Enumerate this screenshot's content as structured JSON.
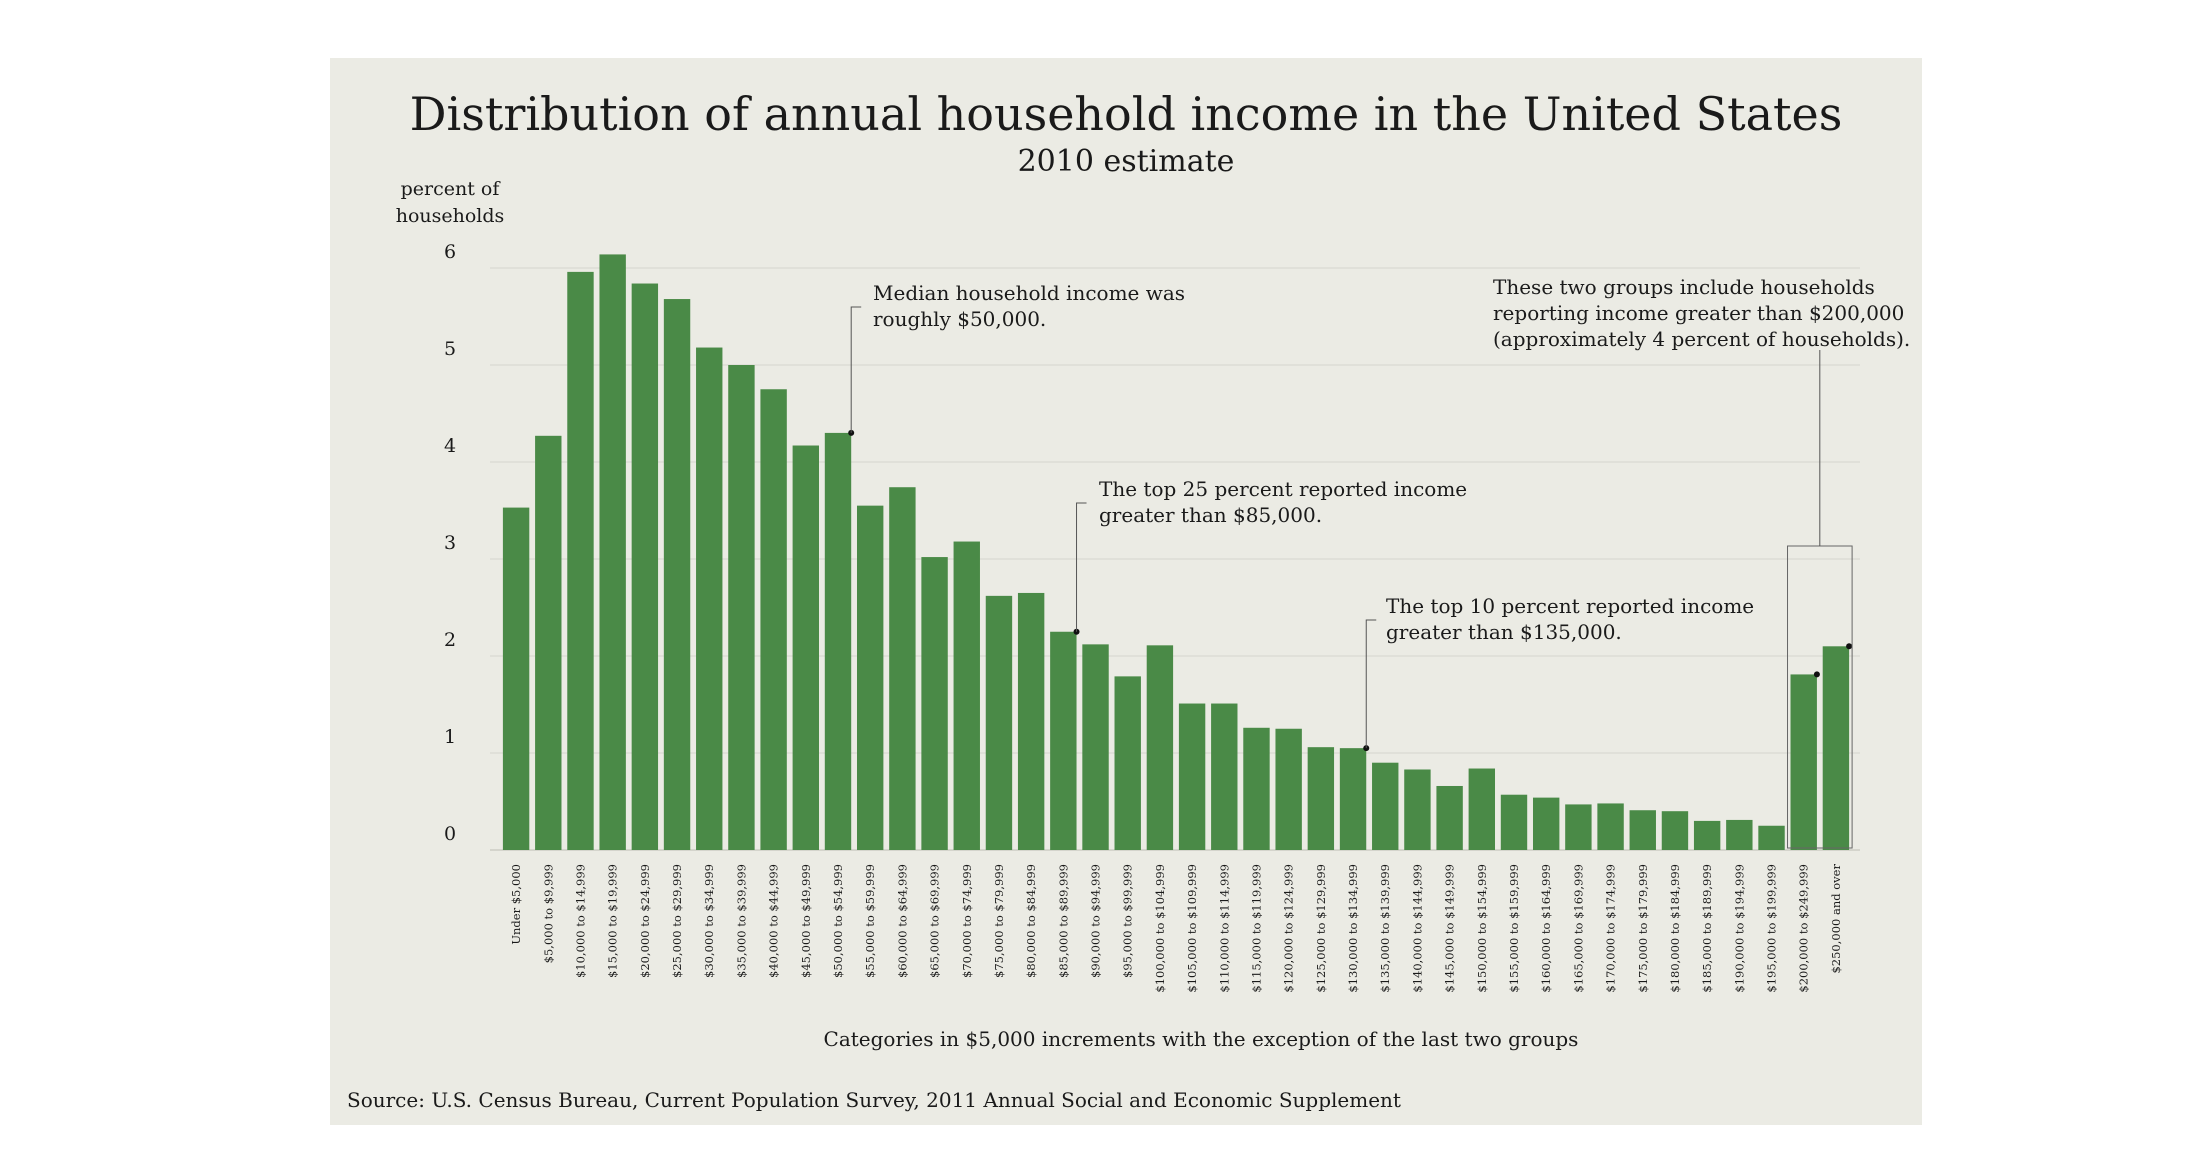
{
  "chart_data": {
    "type": "bar",
    "title": "Distribution of annual household income in the United States",
    "subtitle": "2010 estimate",
    "ylabel": [
      "percent of",
      "households"
    ],
    "xlabel": "Categories in $5,000 increments with the exception of the last two groups",
    "source": "Source: U.S. Census Bureau, Current Population Survey, 2011 Annual Social and Economic Supplement",
    "ylim": [
      0,
      6
    ],
    "yticks": [
      0,
      1,
      2,
      3,
      4,
      5,
      6
    ],
    "grid": true,
    "bar_color": "#4a8a47",
    "background_color": "#ebebe4",
    "categories": [
      "Under $5,000",
      "$5,000 to $9,999",
      "$10,000 to $14,999",
      "$15,000 to $19,999",
      "$20,000 to $24,999",
      "$25,000 to $29,999",
      "$30,000 to $34,999",
      "$35,000 to $39,999",
      "$40,000 to $44,999",
      "$45,000 to $49,999",
      "$50,000 to $54,999",
      "$55,000 to $59,999",
      "$60,000 to $64,999",
      "$65,000 to $69,999",
      "$70,000 to $74,999",
      "$75,000 to $79,999",
      "$80,000 to $84,999",
      "$85,000 to $89,999",
      "$90,000 to $94,999",
      "$95,000 to $99,999",
      "$100,000 to $104,999",
      "$105,000 to $109,999",
      "$110,000 to $114,999",
      "$115,000 to $119,999",
      "$120,000 to $124,999",
      "$125,000 to $129,999",
      "$130,000 to $134,999",
      "$135,000 to $139,999",
      "$140,000 to $144,999",
      "$145,000 to $149,999",
      "$150,000 to $154,999",
      "$155,000 to $159,999",
      "$160,000 to $164,999",
      "$165,000 to $169,999",
      "$170,000 to $174,999",
      "$175,000 to $179,999",
      "$180,000 to $184,999",
      "$185,000 to $189,999",
      "$190,000 to $194,999",
      "$195,000 to $199,999",
      "$200,000 to $249,999",
      "$250,000 and over"
    ],
    "values": [
      3.53,
      4.27,
      5.96,
      6.14,
      5.84,
      5.68,
      5.18,
      5.0,
      4.75,
      4.17,
      4.3,
      3.55,
      3.74,
      3.02,
      3.18,
      2.62,
      2.65,
      2.25,
      2.12,
      1.79,
      2.11,
      1.51,
      1.51,
      1.26,
      1.25,
      1.06,
      1.05,
      0.9,
      0.83,
      0.66,
      0.84,
      0.57,
      0.54,
      0.47,
      0.48,
      0.41,
      0.4,
      0.3,
      0.31,
      0.25,
      1.81,
      2.1
    ],
    "annotations": [
      {
        "text": [
          "Median household income was",
          "roughly $50,000."
        ],
        "category_index": 10
      },
      {
        "text": [
          "The top 25 percent reported income",
          "greater than $85,000."
        ],
        "category_index": 17
      },
      {
        "text": [
          "The top 10 percent reported income",
          "greater than $135,000."
        ],
        "category_index": 26
      },
      {
        "text": [
          "These two groups include households",
          "reporting income greater than $200,000",
          "(approximately 4 percent of households)."
        ],
        "category_index": [
          40,
          41
        ]
      }
    ]
  }
}
